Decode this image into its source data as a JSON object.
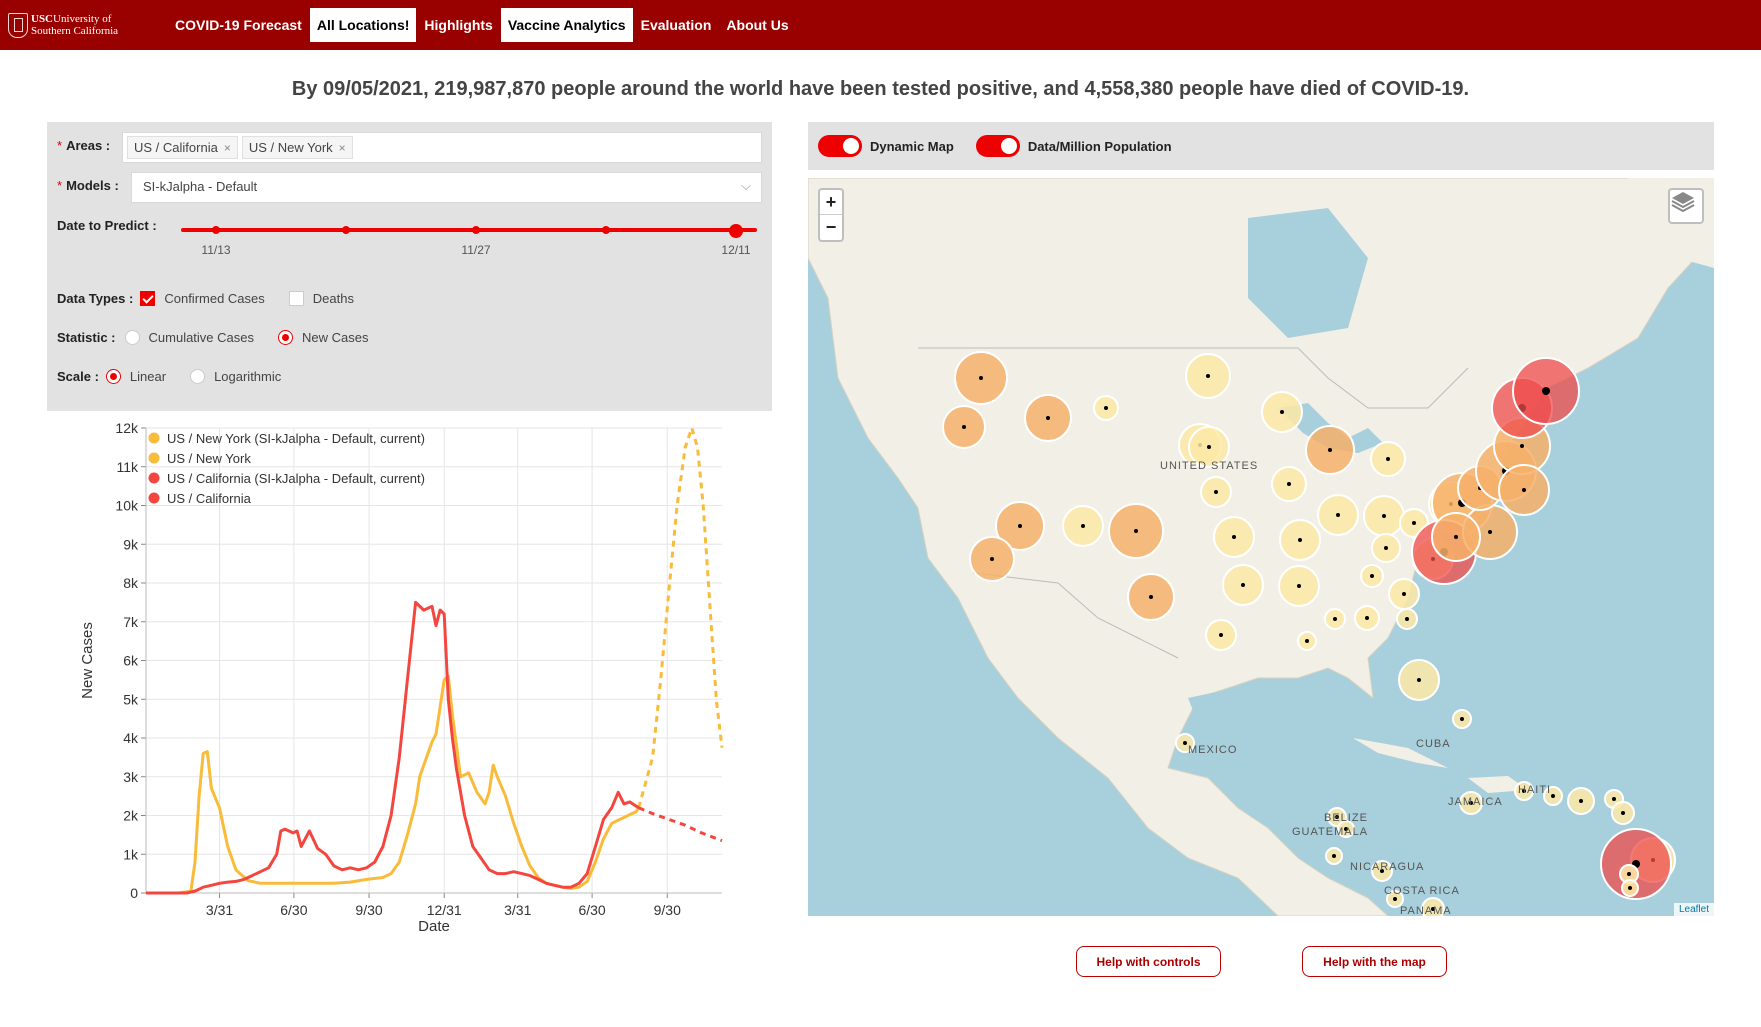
{
  "nav": {
    "logo_line1": "University of",
    "logo_line2": "Southern California",
    "logo_usc": "USC",
    "items": [
      "COVID-19 Forecast",
      "All Locations!",
      "Highlights",
      "Vaccine Analytics",
      "Evaluation",
      "About Us"
    ],
    "active": [
      "All Locations!",
      "Vaccine Analytics"
    ]
  },
  "headline": "By 09/05/2021, 219,987,870 people around the world have been tested positive, and 4,558,380 people have died of COVID-19.",
  "controls": {
    "areas_label": "Areas :",
    "areas": [
      "US / California",
      "US / New York"
    ],
    "models_label": "Models :",
    "model_value": "SI-kJalpha - Default",
    "date_label": "Date to Predict :",
    "date_ticks": [
      "11/13",
      "11/27",
      "12/11"
    ],
    "date_position": 1.0,
    "data_types_label": "Data Types :",
    "data_types": [
      {
        "label": "Confirmed Cases",
        "checked": true
      },
      {
        "label": "Deaths",
        "checked": false
      }
    ],
    "statistic_label": "Statistic :",
    "statistic": [
      {
        "label": "Cumulative Cases",
        "selected": false
      },
      {
        "label": "New Cases",
        "selected": true
      }
    ],
    "scale_label": "Scale :",
    "scale": [
      {
        "label": "Linear",
        "selected": true
      },
      {
        "label": "Logarithmic",
        "selected": false
      }
    ]
  },
  "chart_data": {
    "type": "line",
    "xlabel": "Date",
    "ylabel": "New Cases",
    "ylim": [
      0,
      12000
    ],
    "yticks": [
      "0",
      "1k",
      "2k",
      "3k",
      "4k",
      "5k",
      "6k",
      "7k",
      "8k",
      "9k",
      "10k",
      "11k",
      "12k"
    ],
    "xticks": [
      "3/31",
      "6/30",
      "9/30",
      "12/31",
      "3/31",
      "6/30",
      "9/30"
    ],
    "xtick_days": [
      90,
      181,
      273,
      365,
      455,
      546,
      638
    ],
    "xlim": [
      0,
      705
    ],
    "grid": true,
    "legend_position": "top-left",
    "series": [
      {
        "name": "US / New York (SI-kJalpha - Default, current)",
        "color": "#f8bb3a",
        "dashed": true,
        "x": [
          603,
          620,
          630,
          640,
          650,
          660,
          668,
          675,
          682,
          690,
          698,
          705
        ],
        "y": [
          2200,
          3500,
          5500,
          7800,
          10000,
          11500,
          12000,
          11500,
          10000,
          7500,
          5000,
          3750
        ]
      },
      {
        "name": "US / New York",
        "color": "#f8bb3a",
        "dashed": false,
        "x": [
          0,
          40,
          55,
          60,
          65,
          70,
          75,
          80,
          90,
          100,
          110,
          115,
          125,
          140,
          160,
          180,
          200,
          215,
          230,
          250,
          270,
          290,
          300,
          310,
          320,
          330,
          335,
          345,
          350,
          355,
          360,
          365,
          370,
          375,
          385,
          395,
          405,
          415,
          420,
          425,
          430,
          440,
          450,
          460,
          470,
          480,
          490,
          500,
          510,
          520,
          530,
          540,
          550,
          560,
          570,
          580,
          590,
          600,
          603
        ],
        "y": [
          0,
          0,
          50,
          800,
          2500,
          3600,
          3650,
          2700,
          2200,
          1200,
          600,
          500,
          320,
          250,
          250,
          250,
          250,
          250,
          250,
          280,
          350,
          400,
          500,
          800,
          1500,
          2300,
          3000,
          3600,
          3900,
          4100,
          4800,
          5500,
          5600,
          4600,
          3000,
          3100,
          2600,
          2300,
          2600,
          3300,
          3000,
          2500,
          1800,
          1200,
          700,
          400,
          250,
          200,
          150,
          120,
          150,
          300,
          800,
          1400,
          1800,
          1900,
          2000,
          2100,
          2200
        ]
      },
      {
        "name": "US / California (SI-kJalpha - Default, current)",
        "color": "#f4463f",
        "dashed": true,
        "x": [
          603,
          620,
          640,
          660,
          680,
          705
        ],
        "y": [
          2200,
          2050,
          1900,
          1750,
          1550,
          1350
        ]
      },
      {
        "name": "US / California",
        "color": "#f4463f",
        "dashed": false,
        "x": [
          0,
          50,
          60,
          70,
          80,
          90,
          100,
          110,
          120,
          130,
          140,
          150,
          160,
          165,
          170,
          180,
          185,
          190,
          200,
          210,
          220,
          230,
          240,
          250,
          260,
          270,
          280,
          290,
          300,
          310,
          320,
          330,
          340,
          350,
          355,
          360,
          365,
          370,
          375,
          380,
          390,
          400,
          410,
          420,
          430,
          440,
          450,
          460,
          470,
          480,
          490,
          500,
          510,
          520,
          530,
          540,
          550,
          560,
          570,
          578,
          585,
          592,
          603
        ],
        "y": [
          0,
          0,
          50,
          150,
          200,
          250,
          280,
          300,
          350,
          450,
          550,
          650,
          1000,
          1600,
          1650,
          1550,
          1600,
          1200,
          1600,
          1150,
          1000,
          700,
          600,
          650,
          600,
          650,
          800,
          1200,
          2000,
          3500,
          5500,
          7500,
          7300,
          7400,
          6900,
          7300,
          7200,
          5000,
          4000,
          3200,
          2000,
          1200,
          900,
          600,
          500,
          500,
          550,
          500,
          450,
          350,
          250,
          200,
          150,
          150,
          250,
          500,
          1200,
          1900,
          2200,
          2600,
          2300,
          2350,
          2200
        ]
      }
    ]
  },
  "map": {
    "toggles": [
      "Dynamic Map",
      "Data/Million Population"
    ],
    "zoom_in": "+",
    "zoom_out": "−",
    "labels": [
      "UNITED STATES",
      "MEXICO",
      "CUBA",
      "JAMAICA",
      "HAITI",
      "BELIZE",
      "GUATEMALA",
      "NICARAGUA",
      "COSTA RICA",
      "PANAMA"
    ],
    "attribution": "Leaflet",
    "colors": {
      "water": "#a8d0dc",
      "land": "#f2efe6",
      "low": "#fde9a6",
      "mid": "#f6b06a",
      "high": "#ef4b4b"
    }
  },
  "help": {
    "controls": "Help with controls",
    "map": "Help with the map"
  }
}
